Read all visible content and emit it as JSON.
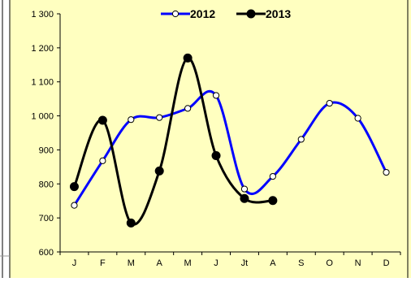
{
  "chart_data": {
    "type": "line",
    "categories": [
      "J",
      "F",
      "M",
      "A",
      "M",
      "J",
      "Jt",
      "A",
      "S",
      "O",
      "N",
      "D"
    ],
    "ylim": [
      600,
      1300
    ],
    "yticks": [
      600,
      700,
      800,
      900,
      1000,
      1100,
      1200,
      1300
    ],
    "ytick_labels": [
      "600",
      "700",
      "800",
      "900",
      "1 000",
      "1 100",
      "1 200",
      "1 300"
    ],
    "grid": false,
    "legend_position": "top",
    "smooth": true,
    "series": [
      {
        "name": "2012",
        "color": "#0000ff",
        "marker": "open-circle",
        "values": [
          737,
          868,
          989,
          995,
          1022,
          1060,
          785,
          822,
          931,
          1037,
          993,
          834
        ]
      },
      {
        "name": "2013",
        "color": "#000000",
        "marker": "filled-circle",
        "values": [
          792,
          987,
          685,
          838,
          1170,
          883,
          757,
          751,
          null,
          null,
          null,
          null
        ]
      }
    ]
  },
  "colors": {
    "plot_background": "#ffffc0",
    "page_background": "#ffffff",
    "frame": "#000000"
  }
}
